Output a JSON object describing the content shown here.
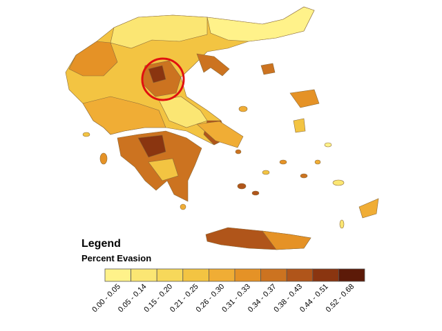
{
  "legend": {
    "title": "Legend",
    "subtitle": "Percent Evasion",
    "items": [
      {
        "label": "0.00 - 0.05",
        "color": "#fff28a"
      },
      {
        "label": "0.05 - 0.14",
        "color": "#fbe673"
      },
      {
        "label": "0.15 - 0.20",
        "color": "#f7d85a"
      },
      {
        "label": "0.21 - 0.25",
        "color": "#f3c442"
      },
      {
        "label": "0.26 - 0.30",
        "color": "#f0ad35"
      },
      {
        "label": "0.31 - 0.33",
        "color": "#e59226"
      },
      {
        "label": "0.34 - 0.37",
        "color": "#cc7320"
      },
      {
        "label": "0.38 - 0.43",
        "color": "#b0551a"
      },
      {
        "label": "0.44 - 0.51",
        "color": "#8a3510"
      },
      {
        "label": "0.52 - 0.68",
        "color": "#5c1a08"
      }
    ]
  }
}
